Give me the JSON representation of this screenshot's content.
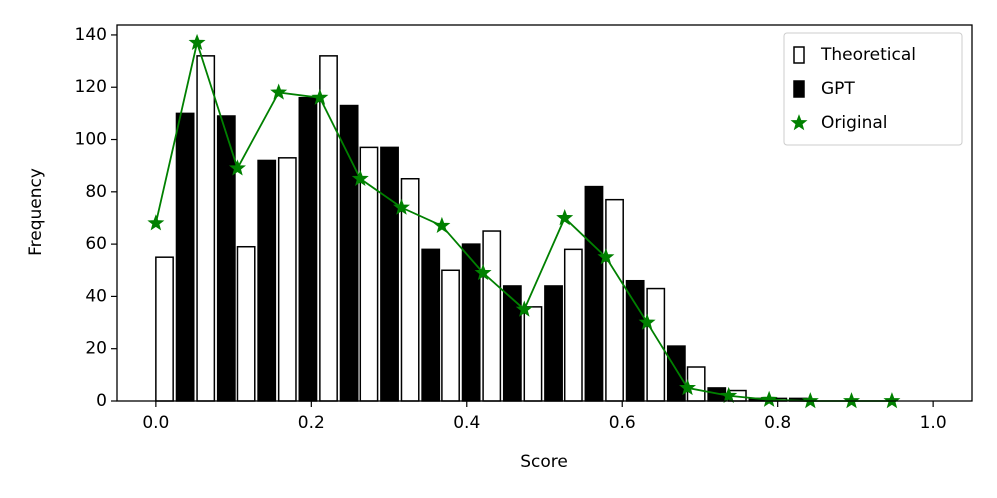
{
  "chart_data": {
    "type": "bar",
    "x_label": "Score",
    "y_label": "Frequency",
    "x": [
      0,
      0.053,
      0.105,
      0.158,
      0.211,
      0.263,
      0.316,
      0.368,
      0.421,
      0.474,
      0.526,
      0.579,
      0.632,
      0.684,
      0.737,
      0.789,
      0.842,
      0.895,
      0.947
    ],
    "series": [
      {
        "name": "Theoretical",
        "type": "bar",
        "color": "#ffffff",
        "edgecolor": "#000000",
        "values": [
          55,
          132,
          59,
          93,
          132,
          97,
          85,
          50,
          65,
          36,
          58,
          77,
          43,
          13,
          4,
          1,
          0,
          0,
          0
        ]
      },
      {
        "name": "GPT",
        "type": "bar",
        "color": "#000000",
        "edgecolor": "#000000",
        "values": [
          110,
          109,
          92,
          116,
          113,
          97,
          58,
          60,
          44,
          44,
          82,
          46,
          21,
          5,
          1,
          1,
          0,
          0,
          0
        ]
      },
      {
        "name": "Original",
        "type": "line",
        "marker": "star",
        "color": "#008000",
        "values": [
          68,
          137,
          89,
          118,
          116,
          85,
          74,
          67,
          49,
          35,
          70,
          55,
          30,
          5,
          2,
          0.5,
          0,
          0,
          0
        ]
      }
    ],
    "xlim": [
      -0.05,
      1.05
    ],
    "xticks": [
      {
        "value": 0,
        "label": "0.0"
      },
      0.2,
      0.4,
      0.6,
      0.8,
      {
        "value": 1,
        "label": "1.0"
      }
    ],
    "ylim": [
      0,
      143.8
    ],
    "yticks": [
      0,
      20,
      40,
      60,
      80,
      100,
      120,
      140
    ],
    "legend": "upper right",
    "grid": false
  }
}
